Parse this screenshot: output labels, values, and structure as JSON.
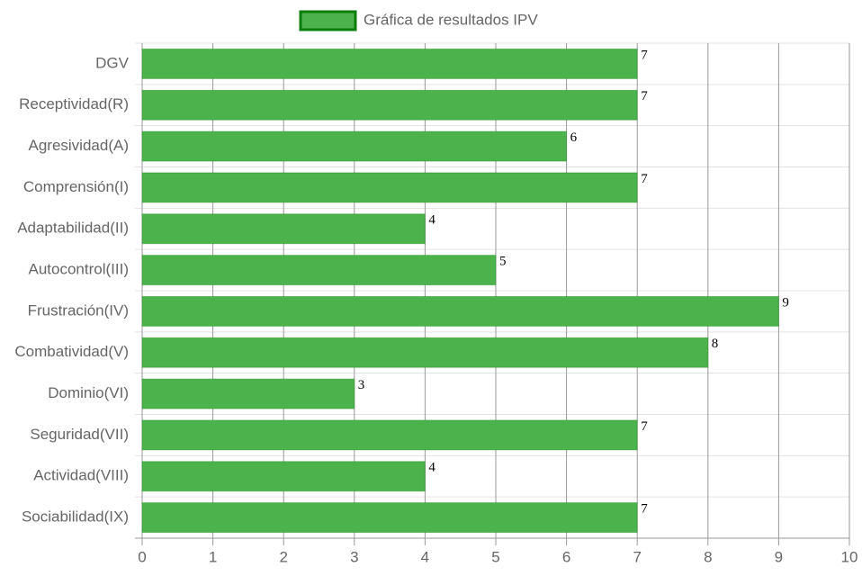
{
  "chart_data": {
    "type": "barh",
    "categories": [
      "DGV",
      "Receptividad(R)",
      "Agresividad(A)",
      "Comprensión(I)",
      "Adaptabilidad(II)",
      "Autocontrol(III)",
      "Frustración(IV)",
      "Combatividad(V)",
      "Dominio(VI)",
      "Seguridad(VII)",
      "Actividad(VIII)",
      "Sociabilidad(IX)"
    ],
    "series": [
      {
        "name": "Gráfica de resultados IPV",
        "color": "#4cb34c",
        "border_color": "#0b7d0b",
        "values": [
          7,
          7,
          6,
          7,
          4,
          5,
          9,
          8,
          3,
          7,
          4,
          7
        ]
      }
    ],
    "xlim": [
      0,
      10
    ],
    "xticks": [
      0,
      1,
      2,
      3,
      4,
      5,
      6,
      7,
      8,
      9,
      10
    ],
    "grid": true,
    "legend": "top"
  }
}
